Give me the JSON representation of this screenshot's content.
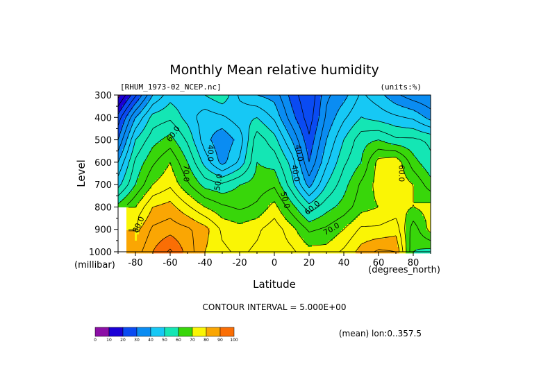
{
  "chart_data": {
    "type": "heatmap",
    "title": "Monthly Mean relative humidity",
    "dataset_label": "[RHUM_1973-02_NCEP.nc]",
    "units_label": "(units:%)",
    "ylabel": "Level",
    "yunits": "(millibar)",
    "xlabel": "Latitude",
    "xunits": "(degrees_north)",
    "contour_interval": "CONTOUR INTERVAL = 5.000E+00",
    "mean_note": "(mean) lon:0..357.5",
    "xlim": [
      -90,
      90
    ],
    "ylim": [
      1000,
      300
    ],
    "x_ticks": [
      -80,
      -60,
      -40,
      -20,
      0,
      20,
      40,
      60,
      80
    ],
    "x_tick_labels": [
      "-80",
      "-60",
      "-40",
      "-20",
      "0",
      "20",
      "40",
      "60",
      "80"
    ],
    "y_ticks": [
      300,
      400,
      500,
      600,
      700,
      800,
      900,
      1000
    ],
    "y_tick_labels": [
      "300",
      "400",
      "500",
      "600",
      "700",
      "800",
      "900",
      "1000"
    ],
    "lat": [
      -90,
      -80,
      -70,
      -60,
      -50,
      -40,
      -30,
      -20,
      -10,
      0,
      10,
      20,
      30,
      40,
      50,
      60,
      70,
      80,
      90
    ],
    "levels": [
      1000,
      900,
      800,
      700,
      600,
      500,
      400,
      300
    ],
    "values": [
      [
        null,
        82,
        90,
        96,
        88,
        80,
        76,
        74,
        76,
        78,
        76,
        72,
        72,
        76,
        82,
        86,
        85,
        60,
        58
      ],
      [
        null,
        78,
        86,
        88,
        86,
        82,
        74,
        72,
        74,
        78,
        72,
        64,
        66,
        70,
        76,
        76,
        78,
        62,
        72
      ],
      [
        62,
        70,
        80,
        82,
        76,
        70,
        66,
        64,
        66,
        72,
        62,
        52,
        58,
        62,
        68,
        70,
        72,
        70,
        72
      ],
      [
        48,
        60,
        70,
        74,
        66,
        58,
        56,
        60,
        62,
        64,
        52,
        38,
        50,
        58,
        66,
        72,
        74,
        70,
        62
      ],
      [
        40,
        56,
        64,
        70,
        60,
        48,
        38,
        46,
        60,
        58,
        48,
        30,
        44,
        54,
        60,
        72,
        74,
        62,
        56
      ],
      [
        30,
        50,
        58,
        62,
        54,
        42,
        36,
        42,
        58,
        52,
        40,
        26,
        40,
        50,
        58,
        60,
        56,
        56,
        54
      ],
      [
        22,
        40,
        52,
        54,
        48,
        42,
        44,
        48,
        50,
        44,
        32,
        22,
        36,
        44,
        50,
        48,
        46,
        44,
        38
      ],
      [
        8,
        24,
        40,
        48,
        46,
        50,
        54,
        44,
        40,
        38,
        28,
        20,
        34,
        38,
        46,
        42,
        36,
        32,
        30
      ]
    ],
    "contour_labels": [
      {
        "text": "40.0",
        "lat": -37,
        "lev": 560,
        "rot": 90
      },
      {
        "text": "50.0",
        "lat": -32,
        "lev": 690,
        "rot": -80
      },
      {
        "text": "60.0",
        "lat": -58,
        "lev": 475,
        "rot": -55
      },
      {
        "text": "70.0",
        "lat": -51,
        "lev": 650,
        "rot": 90
      },
      {
        "text": "80.0",
        "lat": -78,
        "lev": 880,
        "rot": -65
      },
      {
        "text": "40.0",
        "lat": 14,
        "lev": 560,
        "rot": 80
      },
      {
        "text": "40.0",
        "lat": 12,
        "lev": 650,
        "rot": 80
      },
      {
        "text": "50.0",
        "lat": 6,
        "lev": 770,
        "rot": 75
      },
      {
        "text": "60.0",
        "lat": 22,
        "lev": 805,
        "rot": -40
      },
      {
        "text": "70.0",
        "lat": 33,
        "lev": 900,
        "rot": -30
      },
      {
        "text": "60.0",
        "lat": 73,
        "lev": 650,
        "rot": 90
      }
    ],
    "colorbar": {
      "colors": [
        "#8c0fa6",
        "#1a00d6",
        "#0a4bf2",
        "#0a8cf2",
        "#16c8f5",
        "#14e6b4",
        "#38d60a",
        "#faf505",
        "#faa603",
        "#fa6e05",
        "#ff2808",
        "#e60000"
      ],
      "thresholds": [
        0,
        10,
        20,
        30,
        40,
        50,
        60,
        70,
        80,
        90,
        100
      ],
      "labels": [
        "0",
        "10",
        "20",
        "30",
        "40",
        "50",
        "60",
        "70",
        "80",
        "90",
        "100"
      ]
    },
    "grid": false,
    "legend_placement": "bottom-left"
  }
}
